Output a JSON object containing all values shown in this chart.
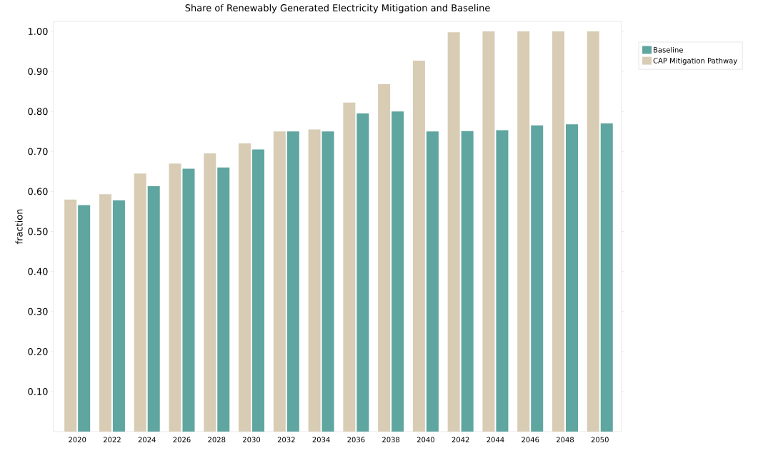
{
  "chart_data": {
    "type": "bar",
    "title": "Share of Renewably Generated Electricity Mitigation and Baseline",
    "ylabel": "fraction",
    "categories": [
      "2020",
      "2022",
      "2024",
      "2026",
      "2028",
      "2030",
      "2032",
      "2034",
      "2036",
      "2038",
      "2040",
      "2042",
      "2044",
      "2046",
      "2048",
      "2050"
    ],
    "series": [
      {
        "name": "Baseline",
        "color": "#5fa5a0",
        "values": [
          0.566,
          0.578,
          0.613,
          0.657,
          0.66,
          0.705,
          0.75,
          0.75,
          0.795,
          0.8,
          0.75,
          0.751,
          0.753,
          0.765,
          0.768,
          0.77
        ]
      },
      {
        "name": "CAP Mitigation Pathway",
        "color": "#d8ccb4",
        "values": [
          0.58,
          0.593,
          0.645,
          0.67,
          0.695,
          0.72,
          0.75,
          0.755,
          0.822,
          0.868,
          0.927,
          0.998,
          1.0,
          1.0,
          1.0,
          1.0
        ]
      }
    ],
    "ylim": [
      0,
      1.025
    ],
    "yticks": [
      {
        "value": 0.1,
        "label": "0.10"
      },
      {
        "value": 0.2,
        "label": "0.20"
      },
      {
        "value": 0.3,
        "label": "0.30"
      },
      {
        "value": 0.4,
        "label": "0.40"
      },
      {
        "value": 0.5,
        "label": "0.50"
      },
      {
        "value": 0.6,
        "label": "0.60"
      },
      {
        "value": 0.7,
        "label": "0.70"
      },
      {
        "value": 0.8,
        "label": "0.80"
      },
      {
        "value": 0.9,
        "label": "0.90"
      },
      {
        "value": 1.0,
        "label": "1.00"
      }
    ],
    "legend": "top right"
  }
}
